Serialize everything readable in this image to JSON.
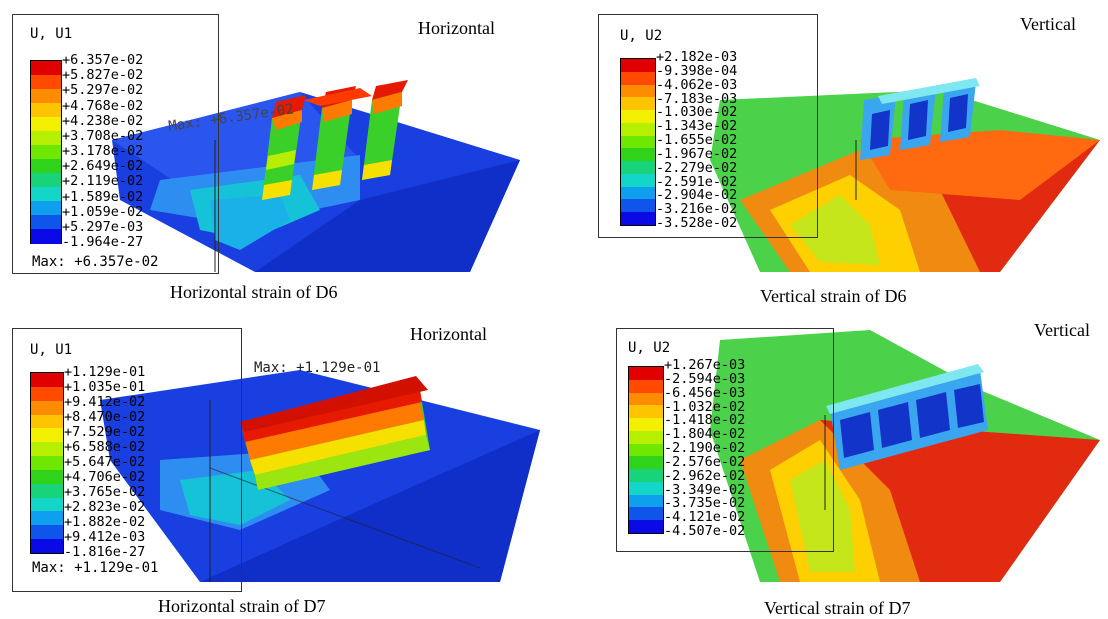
{
  "panels": [
    {
      "corner_title": "Horizontal",
      "caption": "Horizontal strain of D6",
      "legend": {
        "title": "U, U1",
        "values": [
          "+6.357e-02",
          "+5.827e-02",
          "+5.297e-02",
          "+4.768e-02",
          "+4.238e-02",
          "+3.708e-02",
          "+3.178e-02",
          "+2.649e-02",
          "+2.119e-02",
          "+1.589e-02",
          "+1.059e-02",
          "+5.297e-03",
          "-1.964e-27"
        ],
        "max": "Max: +6.357e-02"
      },
      "max_marker": "Max: +6.357e-02"
    },
    {
      "corner_title": "Vertical",
      "caption": "Vertical strain of D6",
      "legend": {
        "title": "U, U2",
        "values": [
          "+2.182e-03",
          "-9.398e-04",
          "-4.062e-03",
          "-7.183e-03",
          "-1.030e-02",
          "-1.343e-02",
          "-1.655e-02",
          "-1.967e-02",
          "-2.279e-02",
          "-2.591e-02",
          "-2.904e-02",
          "-3.216e-02",
          "-3.528e-02"
        ],
        "max": ""
      },
      "max_marker": ""
    },
    {
      "corner_title": "Horizontal",
      "caption": "Horizontal strain of D7",
      "legend": {
        "title": "U, U1",
        "values": [
          "+1.129e-01",
          "+1.035e-01",
          "+9.412e-02",
          "+8.470e-02",
          "+7.529e-02",
          "+6.588e-02",
          "+5.647e-02",
          "+4.706e-02",
          "+3.765e-02",
          "+2.823e-02",
          "+1.882e-02",
          "+9.412e-03",
          "-1.816e-27"
        ],
        "max": "Max: +1.129e-01"
      },
      "max_marker": "Max: +1.129e-01"
    },
    {
      "corner_title": "Vertical",
      "caption": "Vertical strain of D7",
      "legend": {
        "title": "U, U2",
        "values": [
          "+1.267e-03",
          "-2.594e-03",
          "-6.456e-03",
          "-1.032e-02",
          "-1.418e-02",
          "-1.804e-02",
          "-2.190e-02",
          "-2.576e-02",
          "-2.962e-02",
          "-3.349e-02",
          "-3.735e-02",
          "-4.121e-02",
          "-4.507e-02"
        ],
        "max": ""
      },
      "max_marker": ""
    }
  ],
  "colors": {
    "contour_scale": [
      "#e10000",
      "#ff4a00",
      "#ff8c00",
      "#ffc400",
      "#f2ef00",
      "#b6ef00",
      "#6ee800",
      "#2ed31a",
      "#19d37a",
      "#14d6c8",
      "#0ea0ee",
      "#0f55ea",
      "#0a0ae6"
    ],
    "soil_blue": "#1a3fe0",
    "soil_red": "#e22a10",
    "soil_green": "#4cd24a"
  }
}
